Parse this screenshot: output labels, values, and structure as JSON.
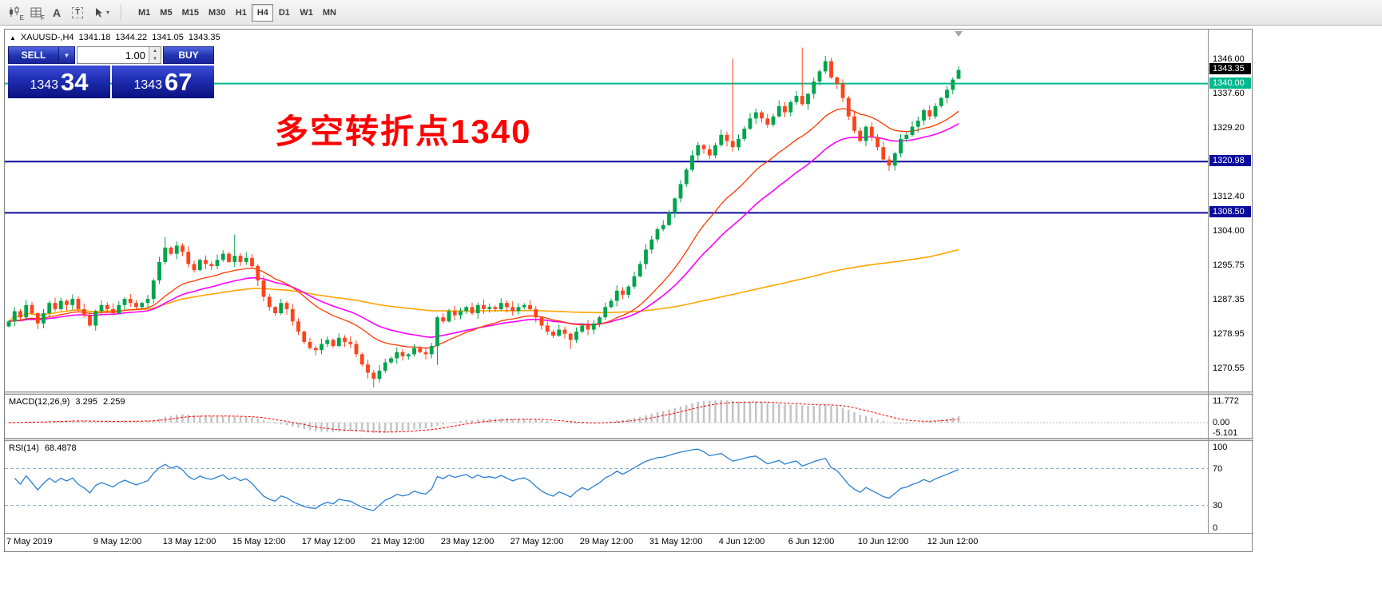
{
  "toolbar": {
    "icons": [
      {
        "name": "candlestick-tool-icon",
        "sub": "E"
      },
      {
        "name": "grid-tool-icon",
        "sub": "F"
      },
      {
        "name": "font-tool-icon",
        "label": "A"
      },
      {
        "name": "text-label-tool-icon",
        "label": "T"
      },
      {
        "name": "crosshair-tool-icon",
        "caret": "▾"
      }
    ],
    "timeframes": [
      "M1",
      "M5",
      "M15",
      "M30",
      "H1",
      "H4",
      "D1",
      "W1",
      "MN"
    ],
    "active_timeframe": "H4"
  },
  "chart_header": {
    "collapse_arrow": "▲",
    "symbol": "XAUUSD-,H4",
    "open": "1341.18",
    "high": "1344.22",
    "low": "1341.05",
    "close": "1343.35"
  },
  "trade_panel": {
    "sell_label": "SELL",
    "buy_label": "BUY",
    "volume": "1.00",
    "dropdown_caret": "▼",
    "spinner_up": "▲",
    "spinner_down": "▼",
    "sell_price": {
      "big": "1343",
      "pips": "34"
    },
    "buy_price": {
      "big": "1343",
      "pips": "67"
    }
  },
  "annotation": {
    "text": "多空转折点1340",
    "color": "#ff0000"
  },
  "indicators": {
    "macd": {
      "label": "MACD(12,26,9)",
      "main_value": "3.295",
      "signal_value": "2.259",
      "axis_labels": [
        {
          "text": "11.772",
          "v": 11.772
        },
        {
          "text": "0.00",
          "v": 0
        },
        {
          "text": "-5.101",
          "v": -5.101
        }
      ]
    },
    "rsi": {
      "label": "RSI(14)",
      "value": "68.4878",
      "levels": [
        70,
        30
      ],
      "axis_labels": [
        {
          "text": "100",
          "v": 100
        },
        {
          "text": "70",
          "v": 70
        },
        {
          "text": "30",
          "v": 30
        },
        {
          "text": "0",
          "v": 0
        }
      ]
    }
  },
  "price_axis": {
    "ticks": [
      1346.0,
      1337.6,
      1329.2,
      1312.4,
      1304.0,
      1295.75,
      1287.35,
      1278.95,
      1270.55
    ],
    "current_price": {
      "value": "1343.35",
      "price": 1343.35,
      "bg": "#000000"
    },
    "lines": [
      {
        "price": 1340.0,
        "label": "1340.00",
        "color": "#00b98e"
      },
      {
        "price": 1320.98,
        "label": "1320.98",
        "color": "#0b0b9d"
      },
      {
        "price": 1308.5,
        "label": "1308.50",
        "color": "#0b0b9d"
      }
    ]
  },
  "chart_data": {
    "type": "candlestick",
    "symbol": "XAUUSD",
    "timeframe": "H4",
    "y_range": [
      1265.3,
      1352.8
    ],
    "up_color": "#00a44c",
    "down_color": "#ff431c",
    "ma_fast_color": "#ff3a00",
    "ma_mid_color": "#ff00ff",
    "ma_slow_color": "#ffa500",
    "macd_histogram_color": "#c4c4c4",
    "macd_signal_color": "#ff0000",
    "rsi_color": "#2a7fd4",
    "closes": [
      1282.0,
      1284.5,
      1283.0,
      1286.0,
      1284.0,
      1281.5,
      1284.0,
      1286.5,
      1285.0,
      1287.0,
      1286.0,
      1287.5,
      1285.0,
      1283.5,
      1281.0,
      1284.5,
      1286.0,
      1285.0,
      1284.0,
      1286.0,
      1287.5,
      1286.5,
      1285.5,
      1286.5,
      1287.5,
      1292.0,
      1296.5,
      1300.0,
      1298.5,
      1300.5,
      1299.0,
      1296.0,
      1294.5,
      1297.0,
      1296.0,
      1295.5,
      1297.0,
      1298.5,
      1296.5,
      1298.0,
      1296.5,
      1297.5,
      1295.5,
      1292.0,
      1288.0,
      1285.5,
      1284.0,
      1286.5,
      1285.0,
      1282.0,
      1279.5,
      1277.0,
      1275.5,
      1275.0,
      1276.5,
      1277.5,
      1276.0,
      1278.0,
      1277.0,
      1276.5,
      1274.0,
      1271.5,
      1269.5,
      1268.0,
      1270.0,
      1272.0,
      1273.0,
      1274.5,
      1273.5,
      1274.0,
      1275.5,
      1274.5,
      1274.0,
      1276.0,
      1283.0,
      1282.0,
      1284.5,
      1283.5,
      1284.5,
      1285.5,
      1284.0,
      1286.0,
      1285.0,
      1285.5,
      1285.0,
      1286.5,
      1285.5,
      1284.5,
      1285.5,
      1286.0,
      1285.0,
      1283.0,
      1281.0,
      1279.5,
      1278.5,
      1280.0,
      1279.0,
      1277.5,
      1279.5,
      1281.0,
      1280.0,
      1281.5,
      1283.0,
      1285.5,
      1287.0,
      1289.5,
      1288.5,
      1290.5,
      1293.0,
      1296.0,
      1299.5,
      1302.0,
      1304.5,
      1305.5,
      1308.5,
      1312.0,
      1315.5,
      1319.0,
      1322.5,
      1325.0,
      1324.0,
      1322.5,
      1325.0,
      1327.5,
      1326.0,
      1324.5,
      1326.5,
      1329.0,
      1331.5,
      1333.0,
      1331.5,
      1330.0,
      1332.0,
      1334.5,
      1333.0,
      1335.5,
      1337.0,
      1335.0,
      1337.5,
      1340.5,
      1343.0,
      1345.5,
      1341.5,
      1340.0,
      1336.5,
      1332.0,
      1328.5,
      1326.0,
      1329.5,
      1327.0,
      1324.5,
      1321.5,
      1320.0,
      1323.0,
      1326.5,
      1327.5,
      1329.5,
      1331.0,
      1333.5,
      1332.0,
      1334.5,
      1336.5,
      1338.5,
      1341.0,
      1343.35
    ],
    "wick_overrides": {
      "27": {
        "h": 1302.6
      },
      "39": {
        "h": 1303.2
      },
      "63": {
        "l": 1265.9
      },
      "74": {
        "l": 1271.4
      },
      "97": {
        "l": 1275.3
      },
      "125": {
        "h": 1346.1
      },
      "137": {
        "h": 1348.8
      },
      "152": {
        "l": 1318.7
      }
    },
    "last_candle": {
      "o": 1341.18,
      "h": 1344.22,
      "l": 1341.05,
      "c": 1343.35
    },
    "time_labels": [
      {
        "label": "7 May 2019",
        "index": 0
      },
      {
        "label": "9 May 12:00",
        "index": 15
      },
      {
        "label": "13 May 12:00",
        "index": 27
      },
      {
        "label": "15 May 12:00",
        "index": 39
      },
      {
        "label": "17 May 12:00",
        "index": 51
      },
      {
        "label": "21 May 12:00",
        "index": 63
      },
      {
        "label": "23 May 12:00",
        "index": 75
      },
      {
        "label": "27 May 12:00",
        "index": 87
      },
      {
        "label": "29 May 12:00",
        "index": 99
      },
      {
        "label": "31 May 12:00",
        "index": 111
      },
      {
        "label": "4 Jun 12:00",
        "index": 123
      },
      {
        "label": "6 Jun 12:00",
        "index": 135
      },
      {
        "label": "10 Jun 12:00",
        "index": 147
      },
      {
        "label": "12 Jun 12:00",
        "index": 159
      }
    ]
  }
}
